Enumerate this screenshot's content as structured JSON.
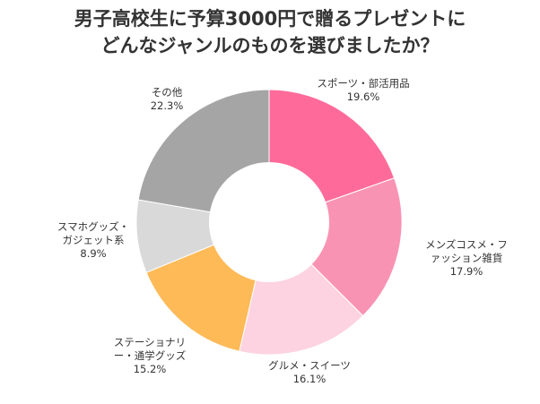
{
  "title": {
    "line1": "男子高校生に予算3000円で贈るプレゼントに",
    "line2": "どんなジャンルのものを選びましたか？"
  },
  "chart_data": {
    "type": "donut",
    "unit": "%",
    "start": "12 o'clock, clockwise",
    "slices": [
      {
        "label": [
          "スポーツ・部活用品"
        ],
        "value": 19.6,
        "display": "19.6%",
        "color": "#fe6b9a"
      },
      {
        "label": [
          "メンズコスメ・フ",
          "ァッション雑貨"
        ],
        "value": 17.9,
        "display": "17.9%",
        "color": "#f993b4"
      },
      {
        "label": [
          "グルメ・スイーツ"
        ],
        "value": 16.1,
        "display": "16.1%",
        "color": "#fdd3e1"
      },
      {
        "label": [
          "ステーショナリ",
          "ー・通学グッズ"
        ],
        "value": 15.2,
        "display": "15.2%",
        "color": "#ffba58"
      },
      {
        "label": [
          "スマホグッズ・",
          "ガジェット系"
        ],
        "value": 8.9,
        "display": "8.9%",
        "color": "#d9d9d9"
      },
      {
        "label": [
          "その他"
        ],
        "value": 22.3,
        "display": "22.3%",
        "color": "#a5a5a5"
      }
    ]
  }
}
